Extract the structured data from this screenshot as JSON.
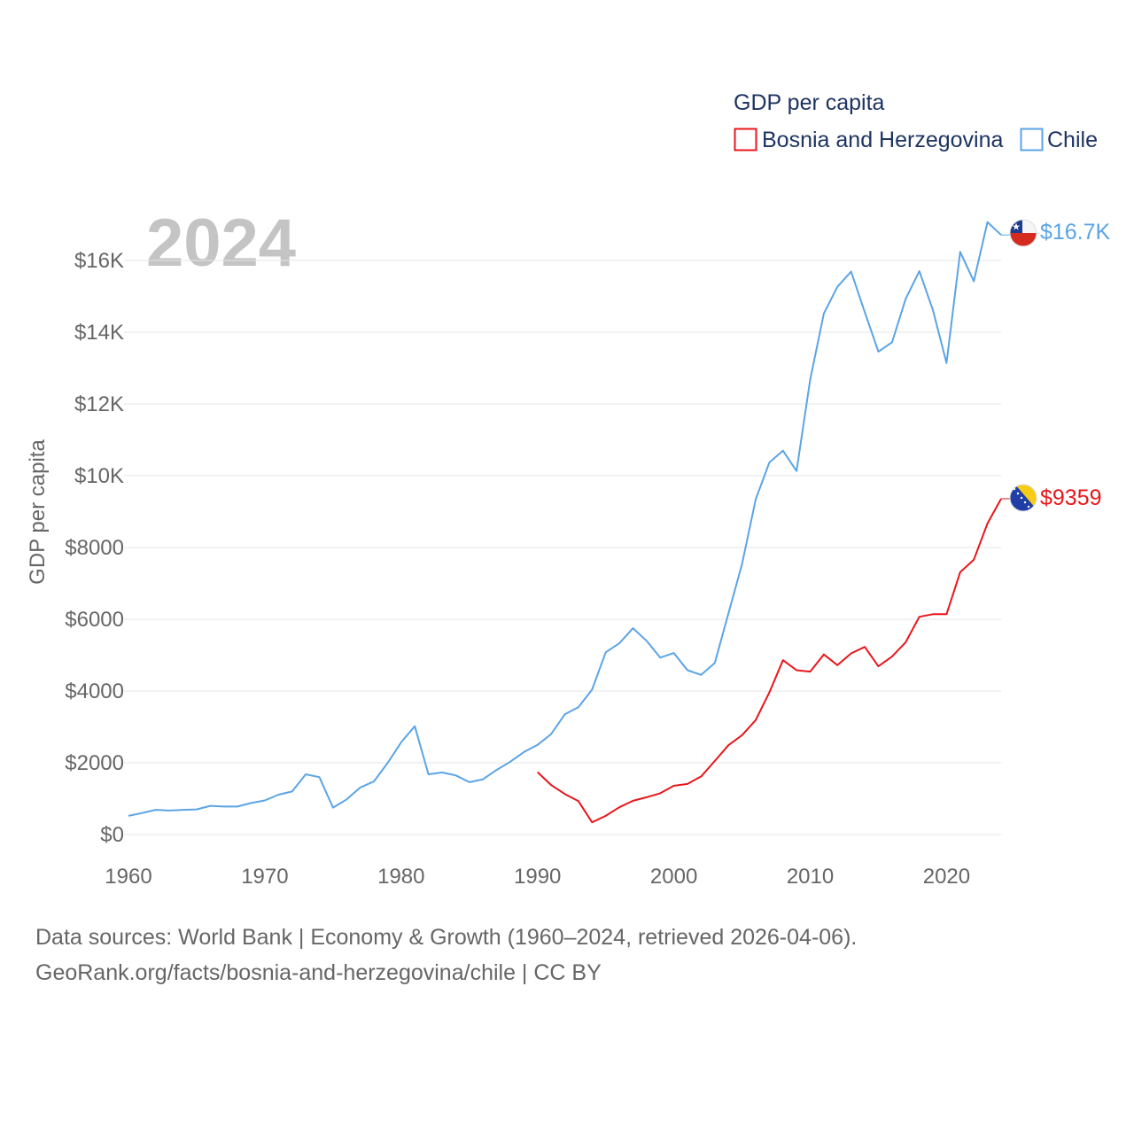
{
  "chart_data": {
    "type": "line",
    "title": "GDP per capita",
    "ylabel": "GDP per capita",
    "xlabel": "",
    "year_display": "2024",
    "xlim": [
      1960,
      2024
    ],
    "ylim": [
      0,
      17200
    ],
    "x_ticks": [
      {
        "value": 1960,
        "label": "1960"
      },
      {
        "value": 1970,
        "label": "1970"
      },
      {
        "value": 1980,
        "label": "1980"
      },
      {
        "value": 1990,
        "label": "1990"
      },
      {
        "value": 2000,
        "label": "2000"
      },
      {
        "value": 2010,
        "label": "2010"
      },
      {
        "value": 2020,
        "label": "2020"
      }
    ],
    "y_ticks": [
      {
        "value": 0,
        "label": "$0"
      },
      {
        "value": 2000,
        "label": "$2000"
      },
      {
        "value": 4000,
        "label": "$4000"
      },
      {
        "value": 6000,
        "label": "$6000"
      },
      {
        "value": 8000,
        "label": "$8000"
      },
      {
        "value": 10000,
        "label": "$10K"
      },
      {
        "value": 12000,
        "label": "$12K"
      },
      {
        "value": 14000,
        "label": "$14K"
      },
      {
        "value": 16000,
        "label": "$16K"
      }
    ],
    "legend": {
      "title": "GDP per capita",
      "position": "top-right",
      "items": [
        {
          "label": "Bosnia and Herzegovina",
          "color": "#e8161b"
        },
        {
          "label": "Chile",
          "color": "#5ba4e5"
        }
      ]
    },
    "series": [
      {
        "name": "Bosnia and Herzegovina",
        "color": "#e8161b",
        "flag": "bosnia-and-herzegovina-flag",
        "end_label": "$9359",
        "x": [
          1990,
          1991,
          1992,
          1993,
          1994,
          1995,
          1996,
          1997,
          1998,
          1999,
          2000,
          2001,
          2002,
          2003,
          2004,
          2005,
          2006,
          2007,
          2008,
          2009,
          2010,
          2011,
          2012,
          2013,
          2014,
          2015,
          2016,
          2017,
          2018,
          2019,
          2020,
          2021,
          2022,
          2023,
          2024
        ],
        "values": [
          1740,
          1380,
          1130,
          930,
          340,
          520,
          760,
          940,
          1040,
          1150,
          1360,
          1410,
          1620,
          2050,
          2490,
          2770,
          3190,
          3960,
          4860,
          4580,
          4540,
          5020,
          4720,
          5050,
          5230,
          4690,
          4960,
          5360,
          6070,
          6140,
          6140,
          7310,
          7660,
          8670,
          9359
        ]
      },
      {
        "name": "Chile",
        "color": "#5ba4e5",
        "flag": "chile-flag",
        "end_label": "$16.7K",
        "x": [
          1960,
          1961,
          1962,
          1963,
          1964,
          1965,
          1966,
          1967,
          1968,
          1969,
          1970,
          1971,
          1972,
          1973,
          1974,
          1975,
          1976,
          1977,
          1978,
          1979,
          1980,
          1981,
          1982,
          1983,
          1984,
          1985,
          1986,
          1987,
          1988,
          1989,
          1990,
          1991,
          1992,
          1993,
          1994,
          1995,
          1996,
          1997,
          1998,
          1999,
          2000,
          2001,
          2002,
          2003,
          2004,
          2005,
          2006,
          2007,
          2008,
          2009,
          2010,
          2011,
          2012,
          2013,
          2014,
          2015,
          2016,
          2017,
          2018,
          2019,
          2020,
          2021,
          2022,
          2023,
          2024
        ],
        "values": [
          520,
          600,
          690,
          670,
          690,
          700,
          800,
          780,
          780,
          880,
          950,
          1110,
          1200,
          1680,
          1600,
          750,
          980,
          1310,
          1480,
          1990,
          2570,
          3020,
          1680,
          1730,
          1650,
          1460,
          1540,
          1800,
          2030,
          2300,
          2500,
          2800,
          3350,
          3550,
          4040,
          5080,
          5330,
          5750,
          5400,
          4930,
          5060,
          4580,
          4450,
          4780,
          6160,
          7540,
          9340,
          10370,
          10700,
          10130,
          12680,
          14520,
          15270,
          15690,
          14560,
          13460,
          13720,
          14930,
          15700,
          14620,
          13140,
          16240,
          15420,
          17070,
          16710
        ]
      }
    ]
  },
  "footer": {
    "sources": "Data sources: World Bank | Economy & Growth (1960–2024, retrieved 2026-04-06).",
    "attribution": "GeoRank.org/facts/bosnia-and-herzegovina/chile | CC BY"
  },
  "colors": {
    "grid": "#e6e6e6",
    "text": "#666666",
    "legend_text": "#1d3461",
    "year_watermark": "#c4c4c4"
  }
}
